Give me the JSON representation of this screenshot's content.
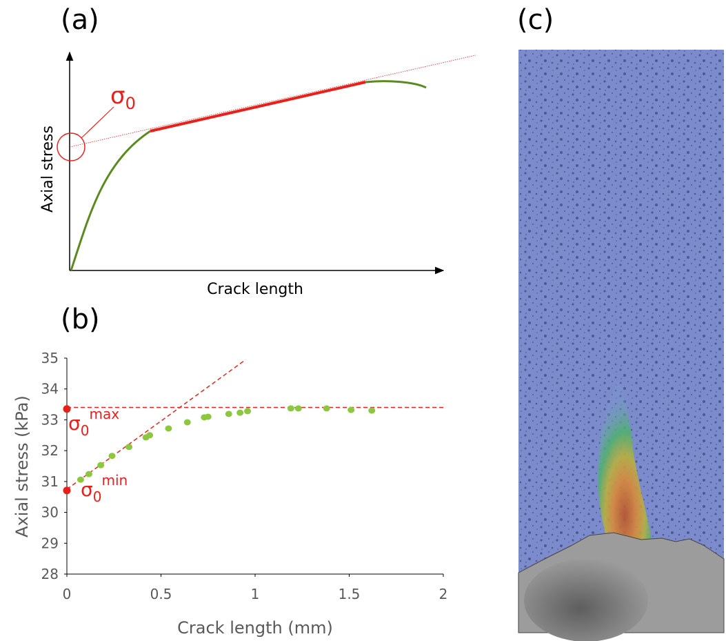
{
  "chart_data": [
    {
      "type": "schematic",
      "title": "(a)",
      "x_label": "Crack length",
      "y_label": "Axial stress",
      "annotation": {
        "symbol": "σ",
        "subscript": "0"
      }
    },
    {
      "type": "scatter",
      "title": "(b)",
      "x_label": "Crack length (mm)",
      "y_label": "Axial stress (kPa)",
      "xlim": [
        0,
        2
      ],
      "xticks": [
        0,
        0.5,
        1,
        1.5,
        2
      ],
      "ylim": [
        28,
        35
      ],
      "yticks": [
        28,
        29,
        30,
        31,
        32,
        33,
        34,
        35
      ],
      "color": "#8dc63f",
      "x": [
        0.073,
        0.117,
        0.18,
        0.24,
        0.33,
        0.42,
        0.44,
        0.54,
        0.64,
        0.73,
        0.75,
        0.86,
        0.92,
        0.96,
        1.19,
        1.23,
        1.38,
        1.51,
        1.62
      ],
      "values": [
        31.06,
        31.24,
        31.53,
        31.83,
        32.12,
        32.43,
        32.5,
        32.72,
        32.92,
        33.08,
        33.1,
        33.19,
        33.23,
        33.28,
        33.37,
        33.37,
        33.37,
        33.32,
        33.3
      ],
      "reference_lines": [
        {
          "color": "#e8201c",
          "x": [
            0,
            2
          ],
          "y": [
            33.4,
            33.4
          ]
        },
        {
          "color": "#e8201c",
          "x": [
            0,
            0.95
          ],
          "y": [
            30.75,
            34.95
          ]
        }
      ],
      "markers": [
        {
          "color": "#e8201c",
          "x": 0,
          "y": 33.35,
          "symbol": "σ",
          "subscript": "0",
          "superscript": "max"
        },
        {
          "color": "#e8201c",
          "x": 0,
          "y": 30.71,
          "symbol": "σ",
          "subscript": "0",
          "superscript": "min"
        }
      ]
    },
    {
      "type": "image",
      "title": "(c)"
    }
  ]
}
